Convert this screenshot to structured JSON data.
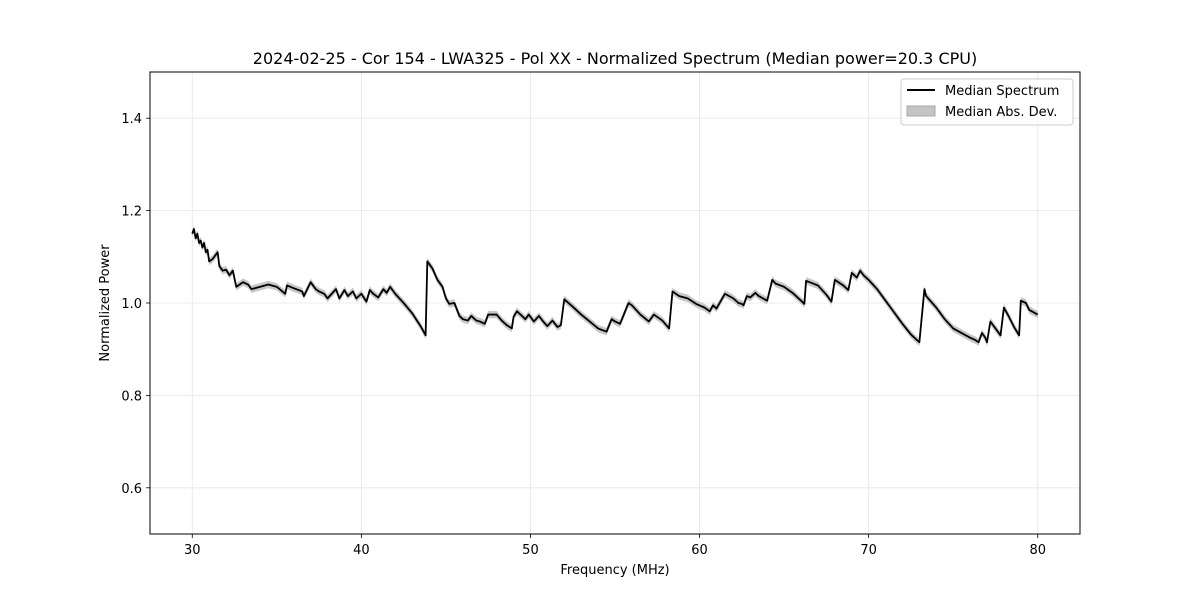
{
  "chart_data": {
    "type": "line",
    "title": "2024-02-25 - Cor 154 - LWA325 - Pol XX - Normalized Spectrum (Median power=20.3 CPU)",
    "xlabel": "Frequency (MHz)",
    "ylabel": "Normalized Power",
    "xlim": [
      27.5,
      82.5
    ],
    "ylim": [
      0.5,
      1.5
    ],
    "xticks": [
      30,
      40,
      50,
      60,
      70,
      80
    ],
    "yticks": [
      0.6,
      0.8,
      1.0,
      1.2,
      1.4
    ],
    "xtick_labels": [
      "30",
      "40",
      "50",
      "60",
      "70",
      "80"
    ],
    "ytick_labels": [
      "0.6",
      "0.8",
      "1.0",
      "1.2",
      "1.4"
    ],
    "grid": true,
    "legend_position": "top-right",
    "legend": [
      "Median Spectrum",
      "Median Abs. Dev."
    ],
    "series": [
      {
        "name": "Median Spectrum",
        "color": "#000000",
        "mad": 0.008,
        "x": [
          30.0,
          30.1,
          30.2,
          30.3,
          30.4,
          30.5,
          30.6,
          30.7,
          30.8,
          30.9,
          31.0,
          31.2,
          31.4,
          31.5,
          31.6,
          31.8,
          32.0,
          32.2,
          32.4,
          32.6,
          32.8,
          33.0,
          33.3,
          33.5,
          34.0,
          34.5,
          35.0,
          35.5,
          35.6,
          36.0,
          36.5,
          36.6,
          37.0,
          37.3,
          37.5,
          37.8,
          38.0,
          38.5,
          38.7,
          39.0,
          39.2,
          39.5,
          39.7,
          40.0,
          40.3,
          40.5,
          40.7,
          41.0,
          41.3,
          41.5,
          41.7,
          42.0,
          42.5,
          43.0,
          43.5,
          43.8,
          43.9,
          44.2,
          44.5,
          44.6,
          44.8,
          45.0,
          45.2,
          45.5,
          45.8,
          46.0,
          46.3,
          46.5,
          46.8,
          47.0,
          47.3,
          47.5,
          48.0,
          48.3,
          48.6,
          48.9,
          49.0,
          49.2,
          49.5,
          49.7,
          49.9,
          50.2,
          50.5,
          50.8,
          51.0,
          51.3,
          51.6,
          51.8,
          52.0,
          52.5,
          53.0,
          53.5,
          54.0,
          54.2,
          54.5,
          54.8,
          55.0,
          55.3,
          55.8,
          56.0,
          56.5,
          57.0,
          57.3,
          57.8,
          58.2,
          58.4,
          58.8,
          59.3,
          59.8,
          60.3,
          60.6,
          60.8,
          61.0,
          61.5,
          62.0,
          62.3,
          62.5,
          62.6,
          62.8,
          63.0,
          63.3,
          63.5,
          64.0,
          64.3,
          64.5,
          65.0,
          65.5,
          66.0,
          66.2,
          66.3,
          67.0,
          67.5,
          67.8,
          68.0,
          68.5,
          68.8,
          69.0,
          69.3,
          69.5,
          69.7,
          70.0,
          70.5,
          71.0,
          71.5,
          72.0,
          72.5,
          73.0,
          73.3,
          73.4,
          74.0,
          74.5,
          75.0,
          75.5,
          76.0,
          76.3,
          76.5,
          76.7,
          76.9,
          77.0,
          77.2,
          77.5,
          77.8,
          78.0,
          78.3,
          78.6,
          78.9,
          79.0,
          79.3,
          79.5,
          80.0
        ],
        "y": [
          1.15,
          1.16,
          1.14,
          1.15,
          1.13,
          1.135,
          1.12,
          1.13,
          1.11,
          1.115,
          1.09,
          1.095,
          1.105,
          1.11,
          1.08,
          1.07,
          1.072,
          1.06,
          1.07,
          1.035,
          1.04,
          1.045,
          1.04,
          1.03,
          1.035,
          1.04,
          1.035,
          1.02,
          1.038,
          1.032,
          1.025,
          1.015,
          1.045,
          1.03,
          1.025,
          1.02,
          1.01,
          1.03,
          1.01,
          1.028,
          1.015,
          1.025,
          1.01,
          1.02,
          1.003,
          1.028,
          1.02,
          1.012,
          1.03,
          1.022,
          1.035,
          1.02,
          1.0,
          0.978,
          0.95,
          0.93,
          1.09,
          1.075,
          1.05,
          1.045,
          1.035,
          1.01,
          0.998,
          1.0,
          0.972,
          0.965,
          0.962,
          0.972,
          0.962,
          0.96,
          0.955,
          0.975,
          0.975,
          0.962,
          0.952,
          0.945,
          0.97,
          0.982,
          0.972,
          0.965,
          0.975,
          0.96,
          0.972,
          0.958,
          0.95,
          0.962,
          0.948,
          0.952,
          1.008,
          0.992,
          0.975,
          0.96,
          0.945,
          0.942,
          0.938,
          0.965,
          0.96,
          0.955,
          1.0,
          0.995,
          0.975,
          0.96,
          0.975,
          0.962,
          0.945,
          1.025,
          1.015,
          1.01,
          0.998,
          0.99,
          0.982,
          0.995,
          0.988,
          1.02,
          1.01,
          1.0,
          0.998,
          0.995,
          1.015,
          1.012,
          1.022,
          1.015,
          1.005,
          1.05,
          1.042,
          1.035,
          1.022,
          1.005,
          0.998,
          1.048,
          1.038,
          1.018,
          1.003,
          1.05,
          1.038,
          1.028,
          1.065,
          1.055,
          1.07,
          1.06,
          1.05,
          1.03,
          1.005,
          0.98,
          0.955,
          0.932,
          0.915,
          1.03,
          1.015,
          0.99,
          0.965,
          0.945,
          0.935,
          0.925,
          0.92,
          0.915,
          0.935,
          0.925,
          0.915,
          0.96,
          0.945,
          0.93,
          0.99,
          0.97,
          0.948,
          0.93,
          1.005,
          1.0,
          0.985,
          0.975
        ]
      },
      {
        "name": "Median Abs. Dev.",
        "color": "#c4c4c4"
      }
    ]
  }
}
